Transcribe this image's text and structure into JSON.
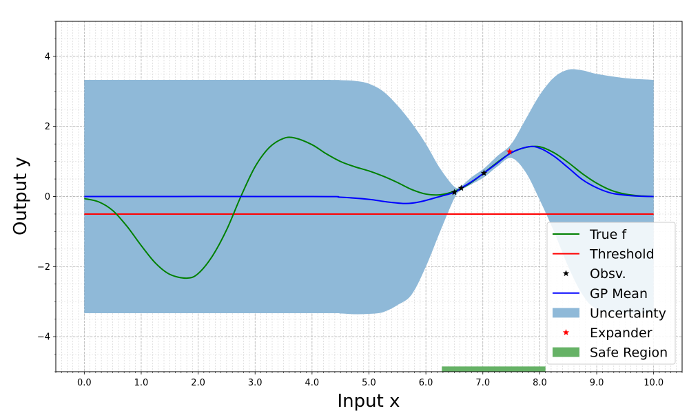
{
  "chart_data": {
    "type": "line",
    "xlabel": "Input x",
    "ylabel": "Output y",
    "xlim": [
      -0.5,
      10.5
    ],
    "ylim": [
      -5,
      5
    ],
    "x_ticks": [
      0,
      1,
      2,
      3,
      4,
      5,
      6,
      7,
      8,
      9,
      10
    ],
    "x_tick_labels": [
      "0.0",
      "1.0",
      "2.0",
      "3.0",
      "4.0",
      "5.0",
      "6.0",
      "7.0",
      "8.0",
      "9.0",
      "10.0"
    ],
    "y_ticks": [
      -4,
      -2,
      0,
      2,
      4
    ],
    "y_tick_labels": [
      "−4",
      "−2",
      "0",
      "2",
      "4"
    ],
    "grid": true,
    "minor_grid": true,
    "legend_position": "bottom-right",
    "series": [
      {
        "name": "True f",
        "kind": "line",
        "color": "#008000",
        "points": [
          [
            0,
            -0.06
          ],
          [
            0.25,
            -0.15
          ],
          [
            0.5,
            -0.4
          ],
          [
            0.75,
            -0.85
          ],
          [
            1,
            -1.4
          ],
          [
            1.25,
            -1.9
          ],
          [
            1.5,
            -2.22
          ],
          [
            1.8,
            -2.33
          ],
          [
            2,
            -2.2
          ],
          [
            2.25,
            -1.7
          ],
          [
            2.5,
            -0.95
          ],
          [
            2.75,
            0
          ],
          [
            3,
            0.85
          ],
          [
            3.25,
            1.4
          ],
          [
            3.5,
            1.66
          ],
          [
            3.7,
            1.67
          ],
          [
            4,
            1.48
          ],
          [
            4.25,
            1.22
          ],
          [
            4.5,
            1.0
          ],
          [
            4.75,
            0.85
          ],
          [
            5,
            0.73
          ],
          [
            5.25,
            0.58
          ],
          [
            5.5,
            0.4
          ],
          [
            5.75,
            0.2
          ],
          [
            6,
            0.07
          ],
          [
            6.25,
            0.05
          ],
          [
            6.5,
            0.15
          ],
          [
            6.75,
            0.35
          ],
          [
            7,
            0.65
          ],
          [
            7.25,
            0.97
          ],
          [
            7.5,
            1.25
          ],
          [
            7.75,
            1.4
          ],
          [
            8,
            1.42
          ],
          [
            8.25,
            1.25
          ],
          [
            8.5,
            0.97
          ],
          [
            8.75,
            0.65
          ],
          [
            9,
            0.38
          ],
          [
            9.25,
            0.18
          ],
          [
            9.5,
            0.07
          ],
          [
            9.75,
            0.02
          ],
          [
            10,
            0
          ]
        ]
      },
      {
        "name": "Threshold",
        "kind": "line",
        "color": "#ff0000",
        "points": [
          [
            0,
            -0.5
          ],
          [
            10,
            -0.5
          ]
        ]
      },
      {
        "name": "Obsv.",
        "kind": "marker",
        "marker": "star",
        "color": "#000000",
        "points": [
          [
            6.5,
            0.12
          ],
          [
            6.62,
            0.24
          ],
          [
            7.02,
            0.67
          ]
        ]
      },
      {
        "name": "GP Mean",
        "kind": "line",
        "color": "#0000ff",
        "points": [
          [
            0,
            0
          ],
          [
            4,
            0
          ],
          [
            4.5,
            -0.02
          ],
          [
            5,
            -0.08
          ],
          [
            5.3,
            -0.15
          ],
          [
            5.65,
            -0.2
          ],
          [
            5.9,
            -0.15
          ],
          [
            6.2,
            -0.02
          ],
          [
            6.5,
            0.12
          ],
          [
            6.62,
            0.24
          ],
          [
            6.8,
            0.42
          ],
          [
            7.02,
            0.67
          ],
          [
            7.25,
            0.95
          ],
          [
            7.5,
            1.25
          ],
          [
            7.8,
            1.42
          ],
          [
            8,
            1.38
          ],
          [
            8.25,
            1.15
          ],
          [
            8.5,
            0.82
          ],
          [
            8.75,
            0.48
          ],
          [
            9,
            0.25
          ],
          [
            9.25,
            0.1
          ],
          [
            9.5,
            0.04
          ],
          [
            9.75,
            0.01
          ],
          [
            10,
            0
          ]
        ]
      },
      {
        "name": "Uncertainty",
        "kind": "band",
        "color": "#8fb9d8",
        "upper": [
          [
            0,
            3.33
          ],
          [
            4,
            3.33
          ],
          [
            4.5,
            3.32
          ],
          [
            4.75,
            3.3
          ],
          [
            5,
            3.22
          ],
          [
            5.25,
            3.0
          ],
          [
            5.5,
            2.6
          ],
          [
            5.75,
            2.1
          ],
          [
            6,
            1.5
          ],
          [
            6.25,
            0.8
          ],
          [
            6.5,
            0.28
          ],
          [
            6.62,
            0.3
          ],
          [
            6.8,
            0.55
          ],
          [
            7.02,
            0.8
          ],
          [
            7.25,
            1.15
          ],
          [
            7.5,
            1.5
          ],
          [
            7.75,
            2.2
          ],
          [
            8,
            2.9
          ],
          [
            8.25,
            3.4
          ],
          [
            8.5,
            3.62
          ],
          [
            8.75,
            3.6
          ],
          [
            9,
            3.5
          ],
          [
            9.5,
            3.38
          ],
          [
            10,
            3.33
          ]
        ],
        "lower": [
          [
            0,
            -3.33
          ],
          [
            4,
            -3.33
          ],
          [
            4.5,
            -3.34
          ],
          [
            4.75,
            -3.36
          ],
          [
            5,
            -3.35
          ],
          [
            5.25,
            -3.3
          ],
          [
            5.5,
            -3.1
          ],
          [
            5.75,
            -2.8
          ],
          [
            6,
            -2.0
          ],
          [
            6.25,
            -1.0
          ],
          [
            6.5,
            -0.05
          ],
          [
            6.62,
            0.18
          ],
          [
            6.8,
            0.35
          ],
          [
            7.02,
            0.55
          ],
          [
            7.25,
            0.85
          ],
          [
            7.5,
            1.1
          ],
          [
            7.75,
            0.7
          ],
          [
            8,
            -0.1
          ],
          [
            8.25,
            -1.0
          ],
          [
            8.5,
            -2.0
          ],
          [
            8.75,
            -2.8
          ],
          [
            9,
            -3.2
          ],
          [
            9.5,
            -3.32
          ],
          [
            10,
            -3.33
          ]
        ]
      },
      {
        "name": "Expander",
        "kind": "marker",
        "marker": "star",
        "color": "#ff0000",
        "points": [
          [
            7.47,
            1.28
          ]
        ]
      },
      {
        "name": "Safe Region",
        "kind": "bar",
        "color": "#66b266",
        "x_range": [
          6.28,
          8.1
        ],
        "y_range": [
          -5,
          -4.85
        ]
      }
    ]
  }
}
